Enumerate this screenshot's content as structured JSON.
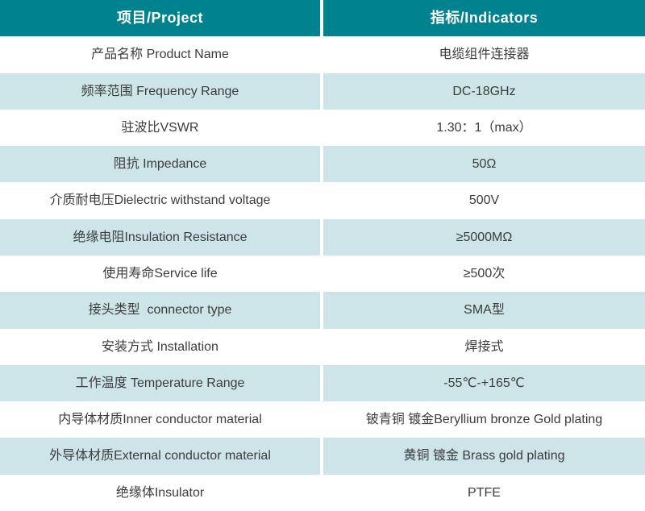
{
  "colors": {
    "header_bg": "#00838F",
    "row_alt_bg": "#CDE5E9",
    "row_bg": "#FFFFFF",
    "header_text": "#FFFFFF",
    "body_text": "#3C3C3C"
  },
  "table": {
    "header": {
      "project": "项目/Project",
      "indicators": "指标/Indicators"
    },
    "rows": [
      {
        "project": "产品名称 Product Name",
        "indicator": "电缆组件连接器"
      },
      {
        "project": "频率范围 Frequency Range",
        "indicator": "DC-18GHz"
      },
      {
        "project": "驻波比VSWR",
        "indicator": "1.30：1（max）"
      },
      {
        "project": "阻抗 Impedance",
        "indicator": "50Ω"
      },
      {
        "project": "介质耐电压Dielectric withstand voltage",
        "indicator": "500V"
      },
      {
        "project": "绝缘电阻Insulation Resistance",
        "indicator": "≥5000MΩ"
      },
      {
        "project": "使用寿命Service life",
        "indicator": "≥500次"
      },
      {
        "project": "接头类型  connector type",
        "indicator": "SMA型"
      },
      {
        "project": "安装方式 Installation",
        "indicator": "焊接式"
      },
      {
        "project": "工作温度 Temperature Range",
        "indicator": "-55℃-+165℃"
      },
      {
        "project": "内导体材质Inner conductor material",
        "indicator": "铍青铜 镀金Beryllium bronze Gold plating"
      },
      {
        "project": "外导体材质External conductor material",
        "indicator": "黄铜 镀金 Brass gold plating"
      },
      {
        "project": "绝缘体Insulator",
        "indicator": "PTFE"
      }
    ]
  }
}
